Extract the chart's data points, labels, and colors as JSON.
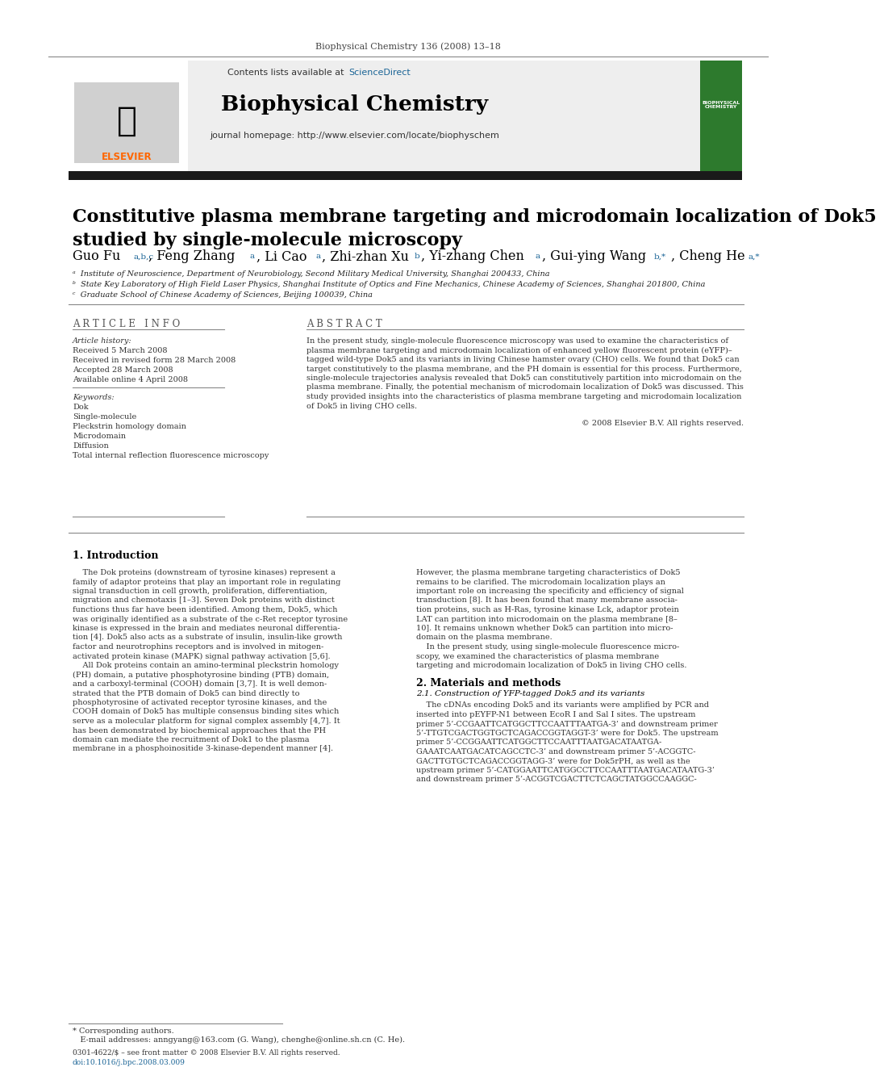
{
  "journal_ref": "Biophysical Chemistry 136 (2008) 13–18",
  "journal_name": "Biophysical Chemistry",
  "contents_line": "Contents lists available at ",
  "sciencedirect": "ScienceDirect",
  "homepage_line": "journal homepage: http://www.elsevier.com/locate/biophyschem",
  "title": "Constitutive plasma membrane targeting and microdomain localization of Dok5\nstudied by single-molecule microscopy",
  "affil_a": "ᵃ  Institute of Neuroscience, Department of Neurobiology, Second Military Medical University, Shanghai 200433, China",
  "affil_b": "ᵇ  State Key Laboratory of High Field Laser Physics, Shanghai Institute of Optics and Fine Mechanics, Chinese Academy of Sciences, Shanghai 201800, China",
  "affil_c": "ᶜ  Graduate School of Chinese Academy of Sciences, Beijing 100039, China",
  "article_info_title": "A R T I C L E   I N F O",
  "article_history_title": "Article history:",
  "received": "Received 5 March 2008",
  "revised": "Received in revised form 28 March 2008",
  "accepted": "Accepted 28 March 2008",
  "online": "Available online 4 April 2008",
  "keywords_title": "Keywords:",
  "keywords": [
    "Dok",
    "Single-molecule",
    "Pleckstrin homology domain",
    "Microdomain",
    "Diffusion",
    "Total internal reflection fluorescence microscopy"
  ],
  "abstract_title": "A B S T R A C T",
  "abstract_text": "In the present study, single-molecule fluorescence microscopy was used to examine the characteristics of plasma membrane targeting and microdomain localization of enhanced yellow fluorescent protein (eYFP)–tagged wild-type Dok5 and its variants in living Chinese hamster ovary (CHO) cells. We found that Dok5 can target constitutively to the plasma membrane, and the PH domain is essential for this process. Furthermore, single-molecule trajectories analysis revealed that Dok5 can constitutively partition into microdomain on the plasma membrane. Finally, the potential mechanism of microdomain localization of Dok5 was discussed. This study provided insights into the characteristics of plasma membrane targeting and microdomain localization of Dok5 in living CHO cells.",
  "copyright": "© 2008 Elsevier B.V. All rights reserved.",
  "intro_title": "1. Introduction",
  "col1_line1": "    The Dok proteins (downstream of tyrosine kinases) represent a",
  "col1_line2": "family of adaptor proteins that play an important role in regulating",
  "col1_line3": "signal transduction in cell growth, proliferation, differentiation,",
  "col1_line4": "migration and chemotaxis [1–3]. Seven Dok proteins with distinct",
  "col1_line5": "functions thus far have been identified. Among them, Dok5, which",
  "col1_line6": "was originally identified as a substrate of the c-Ret receptor tyrosine",
  "col1_line7": "kinase is expressed in the brain and mediates neuronal differentia-",
  "col1_line8": "tion [4]. Dok5 also acts as a substrate of insulin, insulin-like growth",
  "col1_line9": "factor and neurotrophins receptors and is involved in mitogen-",
  "col1_line10": "activated protein kinase (MAPK) signal pathway activation [5,6].",
  "col1_line11": "    All Dok proteins contain an amino-terminal pleckstrin homology",
  "col1_line12": "(PH) domain, a putative phosphotyrosine binding (PTB) domain,",
  "col1_line13": "and a carboxyl-terminal (COOH) domain [3,7]. It is well demon-",
  "col1_line14": "strated that the PTB domain of Dok5 can bind directly to",
  "col1_line15": "phosphotyrosine of activated receptor tyrosine kinases, and the",
  "col1_line16": "COOH domain of Dok5 has multiple consensus binding sites which",
  "col1_line17": "serve as a molecular platform for signal complex assembly [4,7]. It",
  "col1_line18": "has been demonstrated by biochemical approaches that the PH",
  "col1_line19": "domain can mediate the recruitment of Dok1 to the plasma",
  "col1_line20": "membrane in a phosphoinositide 3–kinase–dependent manner [4].",
  "col2_line1": "However, the plasma membrane targeting characteristics of Dok5",
  "col2_line2": "remains to be clarified. The microdomain localization plays an",
  "col2_line3": "important role on increasing the specificity and efficiency of signal",
  "col2_line4": "transduction [8]. It has been found that many membrane associa-",
  "col2_line5": "tion proteins, such as H-Ras, tyrosine kinase Lck, adaptor protein",
  "col2_line6": "LAT can partition into microdomain on the plasma membrane [8–",
  "col2_line7": "10]. It remains unknown whether Dok5 can partition into micro-",
  "col2_line8": "domain on the plasma membrane.",
  "col2_line9": "    In the present study, using single-molecule fluorescence micro-",
  "col2_line10": "scopy, we examined the characteristics of plasma membrane",
  "col2_line11": "targeting and microdomain localization of Dok5 in living CHO cells.",
  "mat_methods": "2. Materials and methods",
  "sec21": "2.1. Construction of YFP-tagged Dok5 and its variants",
  "sec21_line1": "    The cDNAs encoding Dok5 and its variants were amplified by PCR and",
  "sec21_line2": "inserted into pEYFP-N1 between EcoR I and Sal I sites. The upstream",
  "sec21_line3": "primer 5’-CCGAATTCATGGCTTCCAATTTAATGA-3’ and downstream",
  "sec21_line4": "primer 5’-TTGTCGACTGGTGCTCAGACCGGTAGGT-3’ were for Dok5. The",
  "sec21_line5": "upstream primer 5’-CCGGAATTCATGGCTTCCAATTTAATGACATAATGA-",
  "sec21_line6": "GAAATCAATGACATCAGCCTC-3’ and downstream primer 5’-ACGGTC-",
  "sec21_line7": "GACTTGTGCTCAGACCGGTAGG-3’ were for Dok5rPH, as well as the",
  "sec21_line8": "upstream primer 5’-CATGGAATTCATGGCCTTCCAATTTAATGACATAATG-",
  "sec21_line9": "3’ and downstream primer 5’-ACGGTCGACTTCTCAGCTATGGCCAAGGC-",
  "footnote_star": "* Corresponding authors.",
  "footnote_email": "   E-mail addresses: anngyang@163.com (G. Wang), chenghe@online.sh.cn (C. He).",
  "issn": "0301-4622/$ – see front matter © 2008 Elsevier B.V. All rights reserved.",
  "doi": "doi:10.1016/j.bpc.2008.03.009",
  "link_color": "#1a6496",
  "thick_bar_color": "#1a1a1a",
  "background": "#ffffff"
}
